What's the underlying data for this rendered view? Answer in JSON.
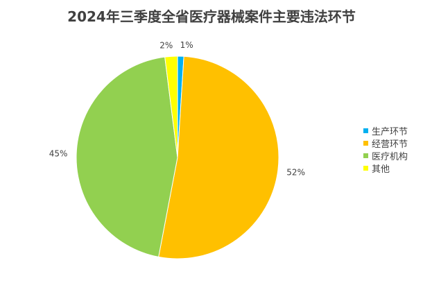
{
  "chart_data": {
    "type": "pie",
    "title": "2024年三季度全省医疗器械案件主要违法环节",
    "categories": [
      "生产环节",
      "经营环节",
      "医疗机构",
      "其他"
    ],
    "values": [
      1,
      52,
      45,
      2
    ],
    "data_labels": [
      "1%",
      "52%",
      "45%",
      "2%"
    ],
    "colors": [
      "#00B0F0",
      "#FFC000",
      "#92D050",
      "#FFFF00"
    ],
    "legend": "right"
  }
}
